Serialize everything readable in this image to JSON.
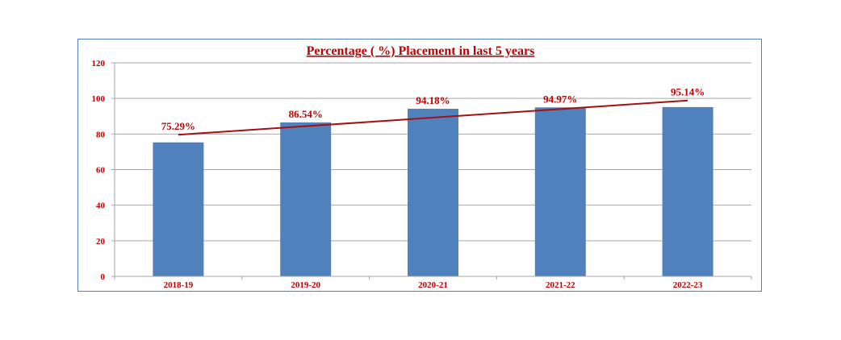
{
  "colors": {
    "bar": "#4f81bd",
    "trendline": "#a50f0f",
    "text": "#c00000",
    "grid": "#a6a6a6",
    "frame": "#4f81bd"
  },
  "chart_data": {
    "type": "bar",
    "title": "Percentage ( %) Placement in last 5 years",
    "categories": [
      "2018-19",
      "2019-20",
      "2020-21",
      "2021-22",
      "2022-23"
    ],
    "values": [
      75.29,
      86.54,
      94.18,
      94.97,
      95.14
    ],
    "data_labels": [
      "75.29%",
      "86.54%",
      "94.18%",
      "94.97%",
      "95.14%"
    ],
    "ylim": [
      0,
      120
    ],
    "yticks": [
      0,
      20,
      40,
      60,
      80,
      100,
      120
    ],
    "grid": true,
    "legend": "none",
    "trendline": "linear"
  }
}
